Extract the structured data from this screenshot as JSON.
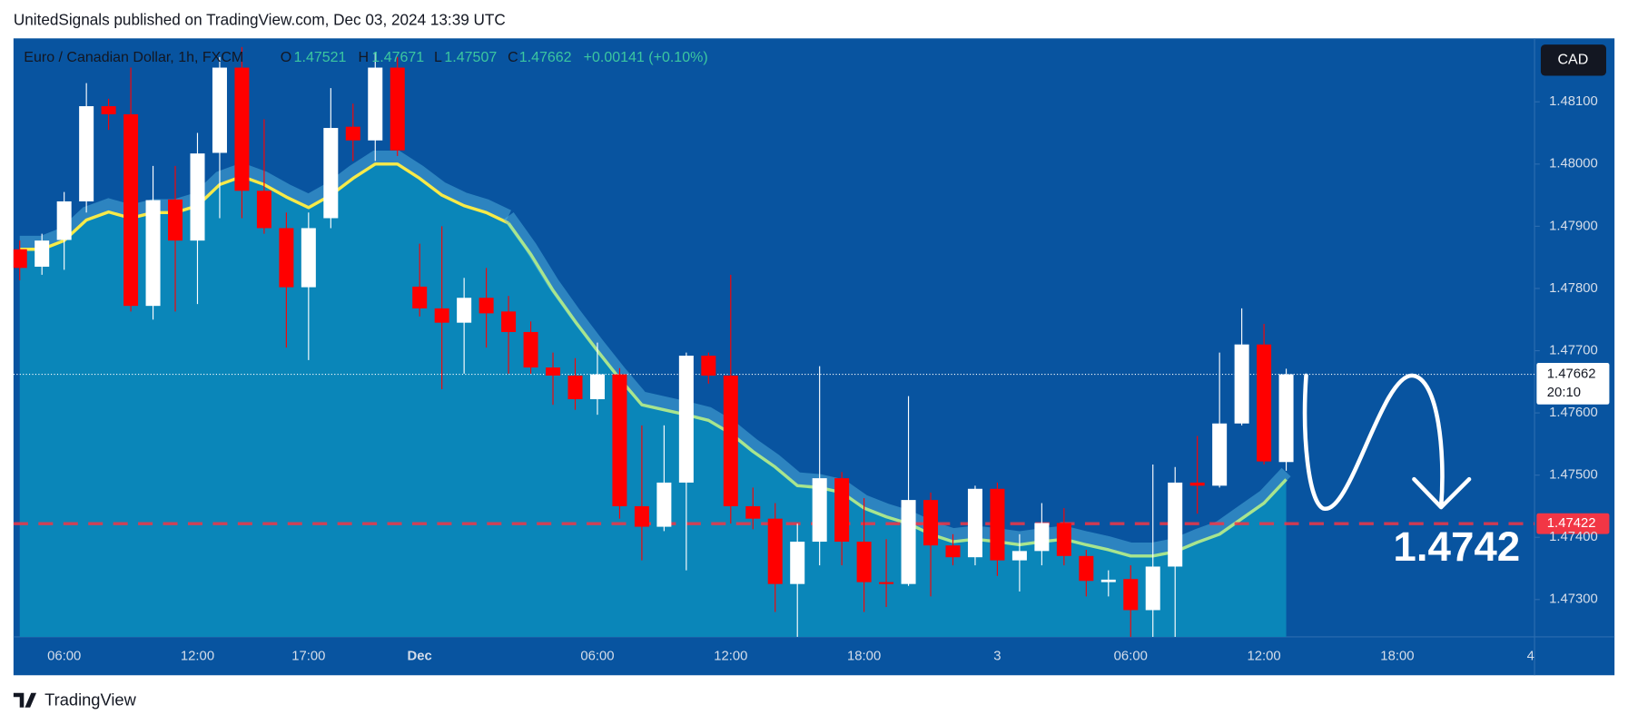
{
  "header": {
    "publisher": "UnitedSignals published on TradingView.com, Dec 03, 2024 13:39 UTC",
    "footer": "TradingView"
  },
  "chart_data": {
    "type": "candlestick",
    "symbol": "Euro / Canadian Dollar, 1h, FXCM",
    "currency": "CAD",
    "legend": {
      "o": "O",
      "h": "H",
      "l": "L",
      "c": "C",
      "change": "+0.00141 (+0.10%)"
    },
    "categories": [
      null,
      null,
      "06:00",
      null,
      null,
      null,
      null,
      null,
      "12:00",
      null,
      null,
      null,
      null,
      "17:00",
      null,
      null,
      null,
      null,
      "Dec",
      null,
      null,
      null,
      null,
      null,
      null,
      null,
      "06:00",
      null,
      null,
      null,
      null,
      null,
      "12:00",
      null,
      null,
      null,
      null,
      null,
      "18:00",
      null,
      null,
      null,
      null,
      null,
      "3",
      null,
      null,
      null,
      null,
      null,
      "06:00",
      null,
      null,
      null,
      null,
      null,
      "12:00",
      null,
      null,
      null,
      null,
      null,
      "18:00",
      null,
      null,
      null,
      null,
      null,
      "4"
    ],
    "open": [
      1.47863,
      1.47835,
      1.47878,
      1.4794,
      1.48093,
      1.4808,
      1.47772,
      1.47943,
      1.47877,
      1.48018,
      1.48155,
      1.47957,
      1.47897,
      1.47802,
      1.47913,
      1.4806,
      1.48038,
      1.48155,
      1.47803,
      1.47768,
      1.47745,
      1.47785,
      1.47763,
      1.4773,
      1.47673,
      1.4766,
      1.47622,
      1.47662,
      1.4745,
      1.47417,
      1.47488,
      1.47692,
      1.4766,
      1.4745,
      1.4743,
      1.47325,
      1.47393,
      1.47495,
      1.47393,
      1.47328,
      1.47325,
      1.4746,
      1.47387,
      1.47368,
      1.47478,
      1.47363,
      1.47378,
      1.47423,
      1.4737,
      1.47328,
      1.47333,
      1.47283,
      1.47353,
      1.47488,
      1.47483,
      1.47583,
      1.4771,
      1.47521,
      null,
      null,
      null,
      null,
      null,
      null,
      null,
      null,
      null,
      null,
      null
    ],
    "high": [
      1.47877,
      1.47888,
      1.47955,
      1.4813,
      1.48105,
      1.48155,
      1.47997,
      1.47997,
      1.4805,
      1.48172,
      1.48188,
      1.48072,
      1.47922,
      1.47922,
      1.48122,
      1.48097,
      1.4818,
      1.48172,
      1.47872,
      1.479,
      1.47817,
      1.47833,
      1.47788,
      1.47747,
      1.47697,
      1.47688,
      1.47713,
      1.47672,
      1.4758,
      1.4758,
      1.47697,
      1.47697,
      1.47822,
      1.4748,
      1.47455,
      1.47422,
      1.47675,
      1.47505,
      1.47463,
      1.47397,
      1.47627,
      1.47472,
      1.47405,
      1.47483,
      1.47488,
      1.47405,
      1.47455,
      1.47447,
      1.4738,
      1.47347,
      1.47355,
      1.47517,
      1.47513,
      1.47563,
      1.47697,
      1.47768,
      1.47743,
      1.47671,
      null,
      null,
      null,
      null,
      null,
      null,
      null,
      null,
      null,
      null,
      null
    ],
    "low": [
      1.47813,
      1.47822,
      1.4783,
      1.47922,
      1.48055,
      1.47763,
      1.4775,
      1.47763,
      1.47775,
      1.47913,
      1.47913,
      1.47888,
      1.47705,
      1.47685,
      1.47897,
      1.48005,
      1.48005,
      1.48013,
      1.47755,
      1.47638,
      1.47663,
      1.47705,
      1.47663,
      1.47663,
      1.47613,
      1.47605,
      1.47597,
      1.4743,
      1.47363,
      1.4741,
      1.47347,
      1.47647,
      1.47422,
      1.47413,
      1.4728,
      1.4724,
      1.47355,
      1.47355,
      1.4728,
      1.47288,
      1.47322,
      1.47305,
      1.47355,
      1.47355,
      1.47338,
      1.47313,
      1.47355,
      1.47355,
      1.47305,
      1.47305,
      1.4724,
      1.4724,
      1.4724,
      1.47438,
      1.4748,
      1.4758,
      1.47517,
      1.47507,
      null,
      null,
      null,
      null,
      null,
      null,
      null,
      null,
      null,
      null,
      null
    ],
    "close": [
      1.47833,
      1.47877,
      1.4794,
      1.48093,
      1.4808,
      1.47772,
      1.47942,
      1.47877,
      1.48017,
      1.48155,
      1.47957,
      1.47897,
      1.47802,
      1.47897,
      1.48058,
      1.48038,
      1.48155,
      1.48022,
      1.47768,
      1.47745,
      1.47785,
      1.4776,
      1.4773,
      1.47673,
      1.4766,
      1.47622,
      1.47662,
      1.4745,
      1.47417,
      1.47488,
      1.47692,
      1.4766,
      1.4745,
      1.4743,
      1.47325,
      1.47393,
      1.47495,
      1.47393,
      1.47328,
      1.47325,
      1.4746,
      1.47387,
      1.47368,
      1.47478,
      1.47363,
      1.47378,
      1.47423,
      1.4737,
      1.4733,
      1.47332,
      1.47283,
      1.47353,
      1.47488,
      1.47483,
      1.47583,
      1.4771,
      1.47522,
      1.47662,
      null,
      null,
      null,
      null,
      null,
      null,
      null,
      null,
      null,
      null,
      null
    ],
    "up_color": "#ffffff",
    "down_color": "#ff0000",
    "ma": [
      {
        "color": "#f7ea48",
        "values": [
          1.47863,
          1.47863,
          1.47877,
          1.4791,
          1.47923,
          1.47913,
          1.47922,
          1.47922,
          1.47933,
          1.47967,
          1.4798,
          1.47967,
          1.47947,
          1.4793,
          1.4795,
          1.47977,
          1.48,
          1.48,
          1.47977,
          1.4795,
          1.47933,
          1.47922,
          1.47905,
          null,
          null,
          null,
          null,
          null,
          null,
          null,
          null,
          null,
          null,
          null,
          null,
          null,
          null,
          null,
          null,
          null,
          null,
          null,
          null,
          null,
          null,
          null,
          null,
          null,
          null,
          null,
          null,
          null,
          null,
          null,
          null,
          null,
          null,
          null,
          null,
          null,
          null,
          null,
          null,
          null,
          null,
          null,
          null,
          null,
          null
        ]
      },
      {
        "color": "#a8e58e",
        "values": [
          null,
          null,
          null,
          null,
          null,
          null,
          null,
          null,
          null,
          null,
          null,
          null,
          null,
          null,
          null,
          null,
          null,
          null,
          null,
          null,
          null,
          null,
          1.47905,
          1.47855,
          1.47797,
          1.47747,
          1.477,
          1.47655,
          1.47613,
          1.47605,
          1.47597,
          1.47588,
          1.47567,
          1.47538,
          1.47513,
          1.47483,
          1.4748,
          1.47472,
          1.47447,
          1.47433,
          1.47422,
          1.47405,
          1.47393,
          1.47397,
          1.47393,
          1.47388,
          1.47393,
          1.47397,
          1.47388,
          1.4738,
          1.4737,
          1.4737,
          1.47377,
          1.47392,
          1.47405,
          1.4743,
          1.47455,
          1.47493,
          null,
          null,
          null,
          null,
          null,
          null,
          null,
          null,
          null,
          null,
          null
        ]
      }
    ],
    "area_color": "#0a86b9",
    "ylim": [
      1.4724,
      1.48202
    ],
    "yticks": [
      {
        "value": 1.473,
        "label": "1.47300"
      },
      {
        "value": 1.474,
        "label": "1.47400"
      },
      {
        "value": 1.475,
        "label": "1.47500"
      },
      {
        "value": 1.476,
        "label": "1.47600"
      },
      {
        "value": 1.477,
        "label": "1.47700"
      },
      {
        "value": 1.478,
        "label": "1.47800"
      },
      {
        "value": 1.479,
        "label": "1.47900"
      },
      {
        "value": 1.48,
        "label": "1.48000"
      },
      {
        "value": 1.481,
        "label": "1.48100"
      }
    ],
    "countdown": "20:10",
    "hline": {
      "value": 1.47422,
      "color": "#f23645"
    },
    "annotation": "1.4742"
  }
}
